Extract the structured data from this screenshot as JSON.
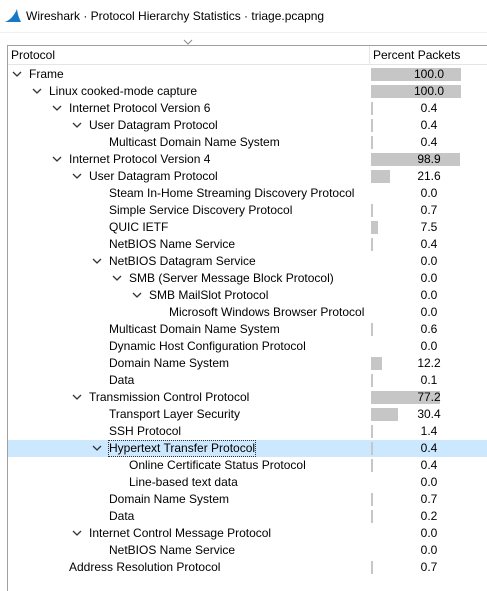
{
  "window": {
    "title": "Wireshark · Protocol Hierarchy Statistics · triage.pcapng"
  },
  "columns": {
    "protocol": "Protocol",
    "percent_packets": "Percent Packets"
  },
  "rows": [
    {
      "label": "Frame",
      "depth": 0,
      "expander": "expanded",
      "percent": "100.0",
      "fraction": 1.0,
      "selected": false
    },
    {
      "label": "Linux cooked-mode capture",
      "depth": 1,
      "expander": "expanded",
      "percent": "100.0",
      "fraction": 1.0,
      "selected": false
    },
    {
      "label": "Internet Protocol Version 6",
      "depth": 2,
      "expander": "expanded",
      "percent": "0.4",
      "fraction": 0.004,
      "selected": false
    },
    {
      "label": "User Datagram Protocol",
      "depth": 3,
      "expander": "expanded",
      "percent": "0.4",
      "fraction": 0.004,
      "selected": false
    },
    {
      "label": "Multicast Domain Name System",
      "depth": 4,
      "expander": "none",
      "percent": "0.4",
      "fraction": 0.004,
      "selected": false
    },
    {
      "label": "Internet Protocol Version 4",
      "depth": 2,
      "expander": "expanded",
      "percent": "98.9",
      "fraction": 0.989,
      "selected": false
    },
    {
      "label": "User Datagram Protocol",
      "depth": 3,
      "expander": "expanded",
      "percent": "21.6",
      "fraction": 0.216,
      "selected": false
    },
    {
      "label": "Steam In-Home Streaming Discovery Protocol",
      "depth": 4,
      "expander": "none",
      "percent": "0.0",
      "fraction": 0.0,
      "selected": false
    },
    {
      "label": "Simple Service Discovery Protocol",
      "depth": 4,
      "expander": "none",
      "percent": "0.7",
      "fraction": 0.007,
      "selected": false
    },
    {
      "label": "QUIC IETF",
      "depth": 4,
      "expander": "none",
      "percent": "7.5",
      "fraction": 0.075,
      "selected": false
    },
    {
      "label": "NetBIOS Name Service",
      "depth": 4,
      "expander": "none",
      "percent": "0.4",
      "fraction": 0.004,
      "selected": false
    },
    {
      "label": "NetBIOS Datagram Service",
      "depth": 4,
      "expander": "expanded",
      "percent": "0.0",
      "fraction": 0.0,
      "selected": false
    },
    {
      "label": "SMB (Server Message Block Protocol)",
      "depth": 5,
      "expander": "expanded",
      "percent": "0.0",
      "fraction": 0.0,
      "selected": false
    },
    {
      "label": "SMB MailSlot Protocol",
      "depth": 6,
      "expander": "expanded",
      "percent": "0.0",
      "fraction": 0.0,
      "selected": false
    },
    {
      "label": "Microsoft Windows Browser Protocol",
      "depth": 7,
      "expander": "none",
      "percent": "0.0",
      "fraction": 0.0,
      "selected": false
    },
    {
      "label": "Multicast Domain Name System",
      "depth": 4,
      "expander": "none",
      "percent": "0.6",
      "fraction": 0.006,
      "selected": false
    },
    {
      "label": "Dynamic Host Configuration Protocol",
      "depth": 4,
      "expander": "none",
      "percent": "0.0",
      "fraction": 0.0,
      "selected": false
    },
    {
      "label": "Domain Name System",
      "depth": 4,
      "expander": "none",
      "percent": "12.2",
      "fraction": 0.122,
      "selected": false
    },
    {
      "label": "Data",
      "depth": 4,
      "expander": "none",
      "percent": "0.1",
      "fraction": 0.001,
      "selected": false
    },
    {
      "label": "Transmission Control Protocol",
      "depth": 3,
      "expander": "expanded",
      "percent": "77.2",
      "fraction": 0.772,
      "selected": false
    },
    {
      "label": "Transport Layer Security",
      "depth": 4,
      "expander": "none",
      "percent": "30.4",
      "fraction": 0.304,
      "selected": false
    },
    {
      "label": "SSH Protocol",
      "depth": 4,
      "expander": "none",
      "percent": "1.4",
      "fraction": 0.014,
      "selected": false
    },
    {
      "label": "Hypertext Transfer Protocol",
      "depth": 4,
      "expander": "expanded",
      "percent": "0.4",
      "fraction": 0.004,
      "selected": true
    },
    {
      "label": "Online Certificate Status Protocol",
      "depth": 5,
      "expander": "none",
      "percent": "0.4",
      "fraction": 0.004,
      "selected": false
    },
    {
      "label": "Line-based text data",
      "depth": 5,
      "expander": "none",
      "percent": "0.0",
      "fraction": 0.0,
      "selected": false
    },
    {
      "label": "Domain Name System",
      "depth": 4,
      "expander": "none",
      "percent": "0.7",
      "fraction": 0.007,
      "selected": false
    },
    {
      "label": "Data",
      "depth": 4,
      "expander": "none",
      "percent": "0.2",
      "fraction": 0.002,
      "selected": false
    },
    {
      "label": "Internet Control Message Protocol",
      "depth": 3,
      "expander": "expanded",
      "percent": "0.0",
      "fraction": 0.0,
      "selected": false
    },
    {
      "label": "NetBIOS Name Service",
      "depth": 4,
      "expander": "none",
      "percent": "0.0",
      "fraction": 0.0,
      "selected": false
    },
    {
      "label": "Address Resolution Protocol",
      "depth": 2,
      "expander": "none",
      "percent": "0.7",
      "fraction": 0.007,
      "selected": false
    }
  ],
  "icons": {
    "app": "wireshark-fin-icon",
    "expander": "chevron-down-icon",
    "sort": "sort-chevron-down-icon"
  },
  "colors": {
    "selection": "#cce8ff",
    "bar": "#c6c6c6",
    "app_icon": "#1679c8"
  }
}
